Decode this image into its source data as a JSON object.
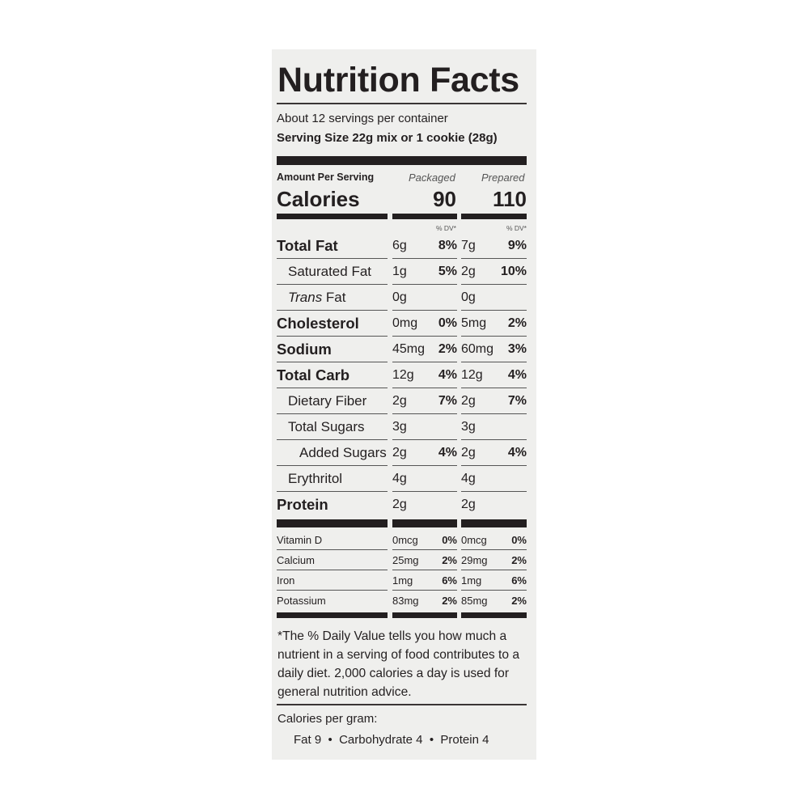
{
  "title": "Nutrition Facts",
  "servings_per_container": "About 12 servings per container",
  "serving_size": "Serving Size 22g mix or 1 cookie (28g)",
  "amount_per_serving": "Amount Per Serving",
  "columns": {
    "packaged": "Packaged",
    "prepared": "Prepared"
  },
  "calories": {
    "label": "Calories",
    "packaged": "90",
    "prepared": "110"
  },
  "dv_header": "% DV*",
  "nutrients": [
    {
      "label": "Total Fat",
      "pk": "6g",
      "pk_dv": "8%",
      "pr": "7g",
      "pr_dv": "9%"
    },
    {
      "label": "Saturated Fat",
      "pk": "1g",
      "pk_dv": "5%",
      "pr": "2g",
      "pr_dv": "10%"
    },
    {
      "label_italic": "Trans",
      "label": " Fat",
      "pk": "0g",
      "pk_dv": "",
      "pr": "0g",
      "pr_dv": ""
    },
    {
      "label": "Cholesterol",
      "pk": "0mg",
      "pk_dv": "0%",
      "pr": "5mg",
      "pr_dv": "2%"
    },
    {
      "label": "Sodium",
      "pk": "45mg",
      "pk_dv": "2%",
      "pr": "60mg",
      "pr_dv": "3%"
    },
    {
      "label": "Total Carb",
      "pk": "12g",
      "pk_dv": "4%",
      "pr": "12g",
      "pr_dv": "4%"
    },
    {
      "label": "Dietary Fiber",
      "pk": "2g",
      "pk_dv": "7%",
      "pr": "2g",
      "pr_dv": "7%"
    },
    {
      "label": "Total Sugars",
      "pk": "3g",
      "pk_dv": "",
      "pr": "3g",
      "pr_dv": ""
    },
    {
      "label": "Added Sugars",
      "pk": "2g",
      "pk_dv": "4%",
      "pr": "2g",
      "pr_dv": "4%"
    },
    {
      "label": "Erythritol",
      "pk": "4g",
      "pk_dv": "",
      "pr": "4g",
      "pr_dv": ""
    },
    {
      "label": "Protein",
      "pk": "2g",
      "pk_dv": "",
      "pr": "2g",
      "pr_dv": ""
    }
  ],
  "vitamins": [
    {
      "label": "Vitamin D",
      "pk": "0mcg",
      "pk_dv": "0%",
      "pr": "0mcg",
      "pr_dv": "0%"
    },
    {
      "label": "Calcium",
      "pk": "25mg",
      "pk_dv": "2%",
      "pr": "29mg",
      "pr_dv": "2%"
    },
    {
      "label": "Iron",
      "pk": "1mg",
      "pk_dv": "6%",
      "pr": "1mg",
      "pr_dv": "6%"
    },
    {
      "label": "Potassium",
      "pk": "83mg",
      "pk_dv": "2%",
      "pr": "85mg",
      "pr_dv": "2%"
    }
  ],
  "footnote": "*The % Daily Value tells you how much a nutrient in a serving of food contributes to a daily diet. 2,000 calories a day is used for general nutrition advice.",
  "calories_per_gram": {
    "label": "Calories per gram:",
    "values": "Fat 9  •  Carbohydrate 4  •  Protein 4"
  }
}
